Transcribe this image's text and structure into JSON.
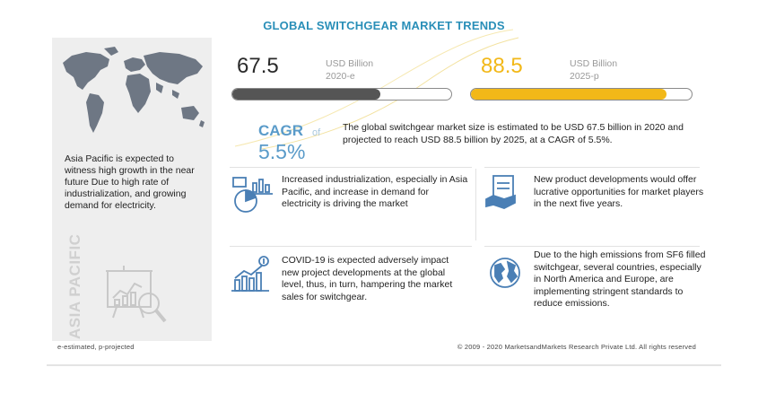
{
  "title": "GLOBAL SWITCHGEAR MARKET TRENDS",
  "region": {
    "description": "Asia Pacific is expected to witness high growth in the near future Due to high rate of industrialization, and growing demand for electricity.",
    "vertical_label": "ASIA PACIFIC"
  },
  "kpi_2020": {
    "value": "67.5",
    "unit": "USD Billion",
    "year": "2020-e",
    "color": "#555555"
  },
  "kpi_2025": {
    "value": "88.5",
    "unit": "USD Billion",
    "year": "2025-p",
    "color": "#f2b818"
  },
  "cagr": {
    "label": "CAGR",
    "of": "of",
    "value": "5.5%",
    "text": "The global switchgear market size is estimated to be USD 67.5 billion in 2020 and projected to reach USD 88.5 billion by 2025, at a CAGR of 5.5%."
  },
  "points": [
    {
      "icon": "industry-analytics-icon",
      "text": "Increased industrialization, especially in Asia Pacific, and increase in demand for electricity is driving the market"
    },
    {
      "icon": "product-development-icon",
      "text": "New product developments would offer lucrative opportunities for market players in the next five years."
    },
    {
      "icon": "covid-impact-icon",
      "text": "COVID-19 is expected adversely impact new project developments at the global level, thus, in turn, hampering the market sales for switchgear."
    },
    {
      "icon": "globe-emissions-icon",
      "text": "Due to the high emissions from SF6 filled switchgear, several countries, especially in North America and Europe, are implementing stringent standards to reduce emissions."
    }
  ],
  "footer": {
    "note": "e-estimated, p-projected",
    "copyright": "© 2009 - 2020 MarketsandMarkets Research Private Ltd. All rights reserved"
  },
  "chart_data": {
    "type": "bar",
    "title": "GLOBAL SWITCHGEAR MARKET TRENDS",
    "categories": [
      "2020-e",
      "2025-p"
    ],
    "values": [
      67.5,
      88.5
    ],
    "unit": "USD Billion",
    "cagr_percent": 5.5,
    "xlim": [
      0,
      100
    ]
  }
}
